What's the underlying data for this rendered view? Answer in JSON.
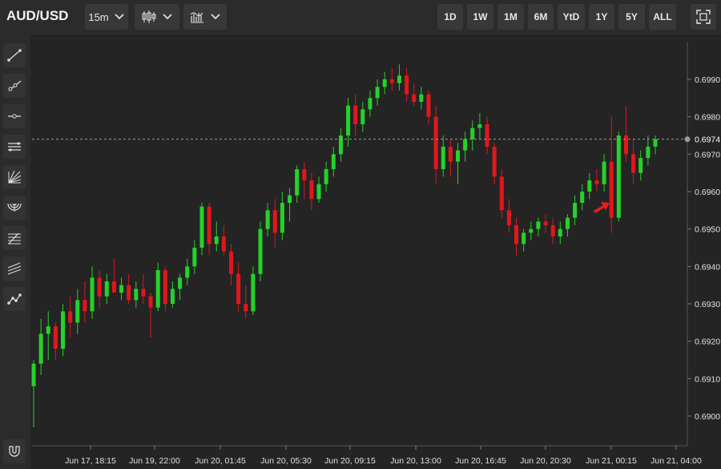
{
  "header": {
    "symbol": "AUD/USD",
    "interval": "15m",
    "chart_type_icon": "candlestick-icon",
    "indicators_icon": "indicators-icon",
    "ranges": [
      "1D",
      "1W",
      "1M",
      "6M",
      "YtD",
      "1Y",
      "5Y",
      "ALL"
    ],
    "fullscreen_icon": "fullscreen-icon"
  },
  "sidebar": {
    "tools": [
      "trend-line-icon",
      "ray-icon",
      "horizontal-line-icon",
      "parallel-channel-icon",
      "fib-fan-icon",
      "fib-arc-icon",
      "fib-retracement-icon",
      "pitchfork-icon",
      "path-icon"
    ],
    "magnet_icon": "magnet-icon"
  },
  "colors": {
    "up": "#25d12b",
    "down": "#e0171b",
    "grid": "#3a3a3a",
    "bg": "#242424"
  },
  "chart_data": {
    "type": "candlestick",
    "title": "AUD/USD",
    "ylim": [
      0.6888,
      0.6995
    ],
    "y_ticks": [
      "0.6900",
      "0.6910",
      "0.6920",
      "0.6930",
      "0.6940",
      "0.6950",
      "0.6960",
      "0.6970",
      "0.6980",
      "0.6990"
    ],
    "x_ticks": [
      "Jun 17, 18:15",
      "Jun 19, 22:00",
      "Jun 20, 01:45",
      "Jun 20, 05:30",
      "Jun 20, 09:15",
      "Jun 20, 13:00",
      "Jun 20, 16:45",
      "Jun 20, 20:30",
      "Jun 21, 00:15",
      "Jun 21, 04:00"
    ],
    "last_price": "0.6974",
    "last_price_value": 0.6974,
    "grid": true,
    "marker": "red arrow near Jun 21, 00:15",
    "candles": [
      [
        0.6908,
        0.6915,
        0.6897,
        0.6914
      ],
      [
        0.6914,
        0.6926,
        0.6911,
        0.6922
      ],
      [
        0.6922,
        0.6928,
        0.6915,
        0.6924
      ],
      [
        0.6924,
        0.6925,
        0.6915,
        0.6918
      ],
      [
        0.6918,
        0.693,
        0.6916,
        0.6928
      ],
      [
        0.6928,
        0.6932,
        0.6921,
        0.6925
      ],
      [
        0.6925,
        0.6934,
        0.6922,
        0.6931
      ],
      [
        0.6931,
        0.6936,
        0.6925,
        0.6928
      ],
      [
        0.6928,
        0.694,
        0.6926,
        0.6937
      ],
      [
        0.6937,
        0.6939,
        0.6929,
        0.6932
      ],
      [
        0.6932,
        0.6938,
        0.693,
        0.6936
      ],
      [
        0.6936,
        0.6942,
        0.6933,
        0.6933
      ],
      [
        0.6933,
        0.6937,
        0.6931,
        0.6935
      ],
      [
        0.6935,
        0.6938,
        0.693,
        0.6931
      ],
      [
        0.6931,
        0.6936,
        0.6929,
        0.6934
      ],
      [
        0.6934,
        0.6938,
        0.693,
        0.6932
      ],
      [
        0.6932,
        0.6933,
        0.6921,
        0.6929
      ],
      [
        0.6929,
        0.6941,
        0.6928,
        0.6939
      ],
      [
        0.6939,
        0.694,
        0.6928,
        0.693
      ],
      [
        0.693,
        0.6936,
        0.6929,
        0.6934
      ],
      [
        0.6934,
        0.6938,
        0.6931,
        0.6937
      ],
      [
        0.6937,
        0.6942,
        0.6935,
        0.694
      ],
      [
        0.694,
        0.6947,
        0.6938,
        0.6945
      ],
      [
        0.6945,
        0.6957,
        0.6943,
        0.6956
      ],
      [
        0.6956,
        0.6957,
        0.6943,
        0.6946
      ],
      [
        0.6946,
        0.6952,
        0.6944,
        0.6948
      ],
      [
        0.6948,
        0.6951,
        0.6943,
        0.6944
      ],
      [
        0.6944,
        0.6946,
        0.6935,
        0.6938
      ],
      [
        0.6938,
        0.6941,
        0.6928,
        0.693
      ],
      [
        0.693,
        0.6935,
        0.6926,
        0.6928
      ],
      [
        0.6928,
        0.694,
        0.6927,
        0.6938
      ],
      [
        0.6938,
        0.6952,
        0.6936,
        0.695
      ],
      [
        0.695,
        0.6957,
        0.6948,
        0.6955
      ],
      [
        0.6955,
        0.6958,
        0.6945,
        0.6949
      ],
      [
        0.6949,
        0.696,
        0.6947,
        0.6957
      ],
      [
        0.6957,
        0.6961,
        0.6952,
        0.6959
      ],
      [
        0.6959,
        0.6967,
        0.6957,
        0.6966
      ],
      [
        0.6966,
        0.6968,
        0.6958,
        0.6963
      ],
      [
        0.6963,
        0.6965,
        0.6955,
        0.6958
      ],
      [
        0.6958,
        0.6964,
        0.6957,
        0.6962
      ],
      [
        0.6962,
        0.6968,
        0.696,
        0.6966
      ],
      [
        0.6966,
        0.6972,
        0.6964,
        0.697
      ],
      [
        0.697,
        0.6977,
        0.6968,
        0.6975
      ],
      [
        0.6975,
        0.6985,
        0.6972,
        0.6983
      ],
      [
        0.6983,
        0.6986,
        0.6975,
        0.6978
      ],
      [
        0.6978,
        0.6984,
        0.6976,
        0.6982
      ],
      [
        0.6982,
        0.6987,
        0.698,
        0.6985
      ],
      [
        0.6985,
        0.699,
        0.6983,
        0.6988
      ],
      [
        0.6988,
        0.6992,
        0.6986,
        0.699
      ],
      [
        0.699,
        0.6993,
        0.6987,
        0.6989
      ],
      [
        0.6989,
        0.6994,
        0.6987,
        0.6991
      ],
      [
        0.6991,
        0.6993,
        0.6984,
        0.6986
      ],
      [
        0.6986,
        0.6989,
        0.6983,
        0.6984
      ],
      [
        0.6984,
        0.6988,
        0.6982,
        0.6986
      ],
      [
        0.6986,
        0.6987,
        0.6978,
        0.698
      ],
      [
        0.698,
        0.6983,
        0.6962,
        0.6966
      ],
      [
        0.6966,
        0.6975,
        0.6964,
        0.6972
      ],
      [
        0.6972,
        0.6974,
        0.6964,
        0.6968
      ],
      [
        0.6968,
        0.6973,
        0.6962,
        0.6971
      ],
      [
        0.6971,
        0.6976,
        0.6968,
        0.6974
      ],
      [
        0.6974,
        0.6979,
        0.6971,
        0.6977
      ],
      [
        0.6977,
        0.6981,
        0.6974,
        0.6978
      ],
      [
        0.6978,
        0.698,
        0.697,
        0.6972
      ],
      [
        0.6972,
        0.6973,
        0.6962,
        0.6964
      ],
      [
        0.6964,
        0.6966,
        0.6953,
        0.6955
      ],
      [
        0.6955,
        0.6958,
        0.6949,
        0.6951
      ],
      [
        0.6951,
        0.6953,
        0.6943,
        0.6946
      ],
      [
        0.6946,
        0.695,
        0.6944,
        0.6949
      ],
      [
        0.6949,
        0.6952,
        0.6947,
        0.695
      ],
      [
        0.695,
        0.6953,
        0.6948,
        0.6952
      ],
      [
        0.6952,
        0.6954,
        0.6949,
        0.6951
      ],
      [
        0.6951,
        0.6953,
        0.6946,
        0.6948
      ],
      [
        0.6948,
        0.6952,
        0.6946,
        0.695
      ],
      [
        0.695,
        0.6954,
        0.6948,
        0.6953
      ],
      [
        0.6953,
        0.6959,
        0.6951,
        0.6957
      ],
      [
        0.6957,
        0.6962,
        0.6955,
        0.696
      ],
      [
        0.696,
        0.6965,
        0.6958,
        0.6963
      ],
      [
        0.6963,
        0.6966,
        0.696,
        0.6962
      ],
      [
        0.6962,
        0.697,
        0.696,
        0.6968
      ],
      [
        0.6968,
        0.698,
        0.6949,
        0.6953
      ],
      [
        0.6953,
        0.6976,
        0.6952,
        0.6975
      ],
      [
        0.6975,
        0.6983,
        0.6968,
        0.697
      ],
      [
        0.697,
        0.6974,
        0.6962,
        0.6965
      ],
      [
        0.6965,
        0.6971,
        0.6963,
        0.6969
      ],
      [
        0.6969,
        0.6975,
        0.6967,
        0.6972
      ],
      [
        0.6972,
        0.6975,
        0.697,
        0.6974
      ]
    ]
  }
}
